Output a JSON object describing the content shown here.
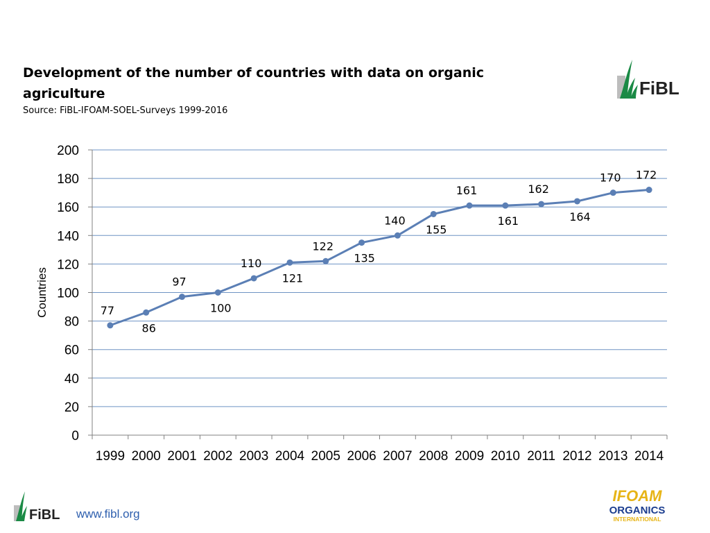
{
  "header": {
    "title": "Development of the number of countries with data on organic agriculture",
    "source": "Source: FiBL-IFOAM-SOEL-Surveys 1999-2016"
  },
  "logos": {
    "top_right": "FiBL",
    "bottom_left": "FiBL",
    "bottom_right_line1": "IFOAM",
    "bottom_right_line2": "ORGANICS",
    "bottom_right_line3": "INTERNATIONAL"
  },
  "footer": {
    "link_text": "www.fibl.org"
  },
  "colors": {
    "series": "#5b7fb5",
    "grid": "#6e93c4",
    "fibl_green": "#1a8a45",
    "fibl_gray": "#bdbdbd",
    "link": "#2e5fae",
    "ifoam_yellow": "#e7b416",
    "ifoam_blue": "#1b3d8f"
  },
  "chart_data": {
    "type": "line",
    "ylabel": "Countries",
    "xlabel": "",
    "ylim": [
      0,
      200
    ],
    "yticks": [
      0,
      20,
      40,
      60,
      80,
      100,
      120,
      140,
      160,
      180,
      200
    ],
    "grid": true,
    "categories": [
      "1999",
      "2000",
      "2001",
      "2002",
      "2003",
      "2004",
      "2005",
      "2006",
      "2007",
      "2008",
      "2009",
      "2010",
      "2011",
      "2012",
      "2013",
      "2014"
    ],
    "values": [
      77,
      86,
      97,
      100,
      110,
      121,
      122,
      135,
      140,
      155,
      161,
      161,
      162,
      164,
      170,
      172
    ],
    "label_positions": [
      "above",
      "below",
      "above",
      "below",
      "above",
      "below",
      "above",
      "below",
      "above",
      "below",
      "above",
      "below",
      "above",
      "below",
      "above",
      "above"
    ]
  }
}
